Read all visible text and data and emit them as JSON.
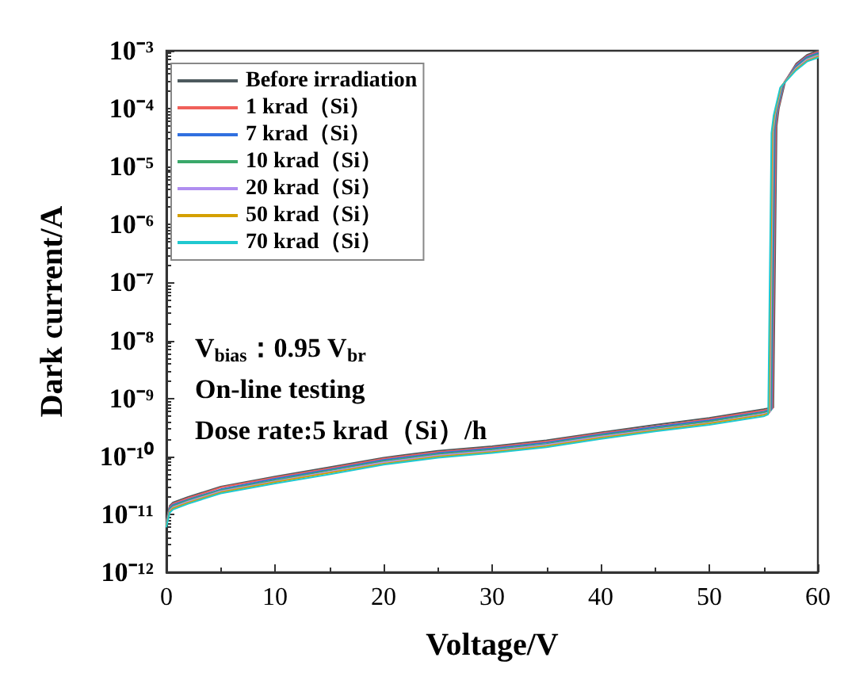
{
  "chart_data": {
    "type": "line",
    "xlabel": "Voltage/V",
    "ylabel": "Dark current/A",
    "log": "y",
    "grid": false,
    "legend": "top left",
    "marker": "none",
    "line_style": "solid",
    "xlim": [
      0,
      60
    ],
    "xticks": [
      0,
      10,
      20,
      30,
      40,
      50,
      60
    ],
    "ylim": [
      1e-12,
      0.001
    ],
    "yticks": [
      {
        "value": 1e-12,
        "label": "10⁻¹²"
      },
      {
        "value": 1e-11,
        "label": "10⁻¹¹"
      },
      {
        "value": 1e-10,
        "label": "10⁻¹⁰"
      },
      {
        "value": 1e-09,
        "label": "10⁻⁹"
      },
      {
        "value": 1e-08,
        "label": "10⁻⁸"
      },
      {
        "value": 1e-07,
        "label": "10⁻⁷"
      },
      {
        "value": 1e-06,
        "label": "10⁻⁶"
      },
      {
        "value": 1e-05,
        "label": "10⁻⁵"
      },
      {
        "value": 0.0001,
        "label": "10⁻⁴"
      },
      {
        "value": 0.001,
        "label": "10⁻³"
      }
    ],
    "series": [
      {
        "name": "Before irradiation",
        "color": "#4d5a5e",
        "x": [
          0,
          0.3,
          0.6,
          2,
          5,
          10,
          15,
          20,
          25,
          30,
          35,
          40,
          45,
          50,
          55,
          55.9,
          56.2,
          56.4,
          57,
          58,
          59,
          60
        ],
        "values": [
          8e-12,
          1.4e-11,
          1.6e-11,
          2e-11,
          3e-11,
          4.5e-11,
          6.5e-11,
          9.5e-11,
          1.25e-10,
          1.5e-10,
          1.9e-10,
          2.6e-10,
          3.5e-10,
          4.6e-10,
          6.5e-10,
          7e-10,
          5e-05,
          0.0001,
          0.0003,
          0.0006,
          0.00085,
          0.001
        ]
      },
      {
        "name": "1 krad（Si）",
        "color": "#f0605a",
        "x": [
          0,
          0.3,
          0.6,
          2,
          5,
          10,
          15,
          20,
          25,
          30,
          35,
          40,
          45,
          50,
          55,
          55.82,
          56.12,
          56.32,
          56.92,
          58,
          59,
          60
        ],
        "values": [
          7.6e-12,
          1.34e-11,
          1.53e-11,
          1.9e-11,
          2.9e-11,
          4.3e-11,
          6.2e-11,
          9.1e-11,
          1.19e-10,
          1.43e-10,
          1.81e-10,
          2.5e-10,
          3.3e-10,
          4.4e-10,
          6.2e-10,
          6.7e-10,
          4.8e-05,
          9.5e-05,
          0.00029,
          0.00057,
          0.00081,
          0.00095
        ]
      },
      {
        "name": "7 krad（Si）",
        "color": "#3070e0",
        "x": [
          0,
          0.3,
          0.6,
          2,
          5,
          10,
          15,
          20,
          25,
          30,
          35,
          40,
          45,
          50,
          55,
          55.74,
          56.04,
          56.24,
          56.84,
          58,
          59,
          60
        ],
        "values": [
          7.3e-12,
          1.28e-11,
          1.46e-11,
          1.8e-11,
          2.7e-11,
          4.1e-11,
          5.9e-11,
          8.7e-11,
          1.14e-10,
          1.37e-10,
          1.73e-10,
          2.4e-10,
          3.2e-10,
          4.2e-10,
          5.9e-10,
          6.4e-10,
          4.6e-05,
          9.1e-05,
          0.00027,
          0.00055,
          0.00078,
          0.00091
        ]
      },
      {
        "name": "10 krad（Si）",
        "color": "#3aa86a",
        "x": [
          0,
          0.3,
          0.6,
          2,
          5,
          10,
          15,
          20,
          25,
          30,
          35,
          40,
          45,
          50,
          55,
          55.66,
          55.96,
          56.16,
          56.76,
          58,
          59,
          60
        ],
        "values": [
          7e-12,
          1.22e-11,
          1.39e-11,
          1.74e-11,
          2.6e-11,
          3.9e-11,
          5.7e-11,
          8.3e-11,
          1.09e-10,
          1.31e-10,
          1.65e-10,
          2.3e-10,
          3.05e-10,
          4e-10,
          5.7e-10,
          6.1e-10,
          4.4e-05,
          8.7e-05,
          0.00026,
          0.00052,
          0.00074,
          0.00087
        ]
      },
      {
        "name": "20 krad（Si）",
        "color": "#b08ef0",
        "x": [
          0,
          0.3,
          0.6,
          2,
          5,
          10,
          15,
          20,
          25,
          30,
          35,
          40,
          45,
          50,
          55,
          55.58,
          55.88,
          56.08,
          56.68,
          58,
          59,
          60
        ],
        "values": [
          6.7e-12,
          1.16e-11,
          1.33e-11,
          1.66e-11,
          2.5e-11,
          3.7e-11,
          5.4e-11,
          7.9e-11,
          1.04e-10,
          1.25e-10,
          1.58e-10,
          2.2e-10,
          2.9e-10,
          3.8e-10,
          5.4e-10,
          5.8e-10,
          4.2e-05,
          8.3e-05,
          0.00025,
          0.0005,
          0.00071,
          0.00083
        ]
      },
      {
        "name": "50 krad（Si）",
        "color": "#d4a000",
        "x": [
          0,
          0.3,
          0.6,
          2,
          5,
          10,
          15,
          20,
          25,
          30,
          35,
          40,
          45,
          50,
          55,
          55.5,
          55.8,
          56,
          56.6,
          58,
          59,
          60
        ],
        "values": [
          6.4e-12,
          1.11e-11,
          1.27e-11,
          1.59e-11,
          2.4e-11,
          3.6e-11,
          5.2e-11,
          7.5e-11,
          9.9e-11,
          1.19e-10,
          1.51e-10,
          2.1e-10,
          2.8e-10,
          3.7e-10,
          5.2e-10,
          5.6e-10,
          4e-05,
          7.9e-05,
          0.00024,
          0.00048,
          0.00067,
          0.00079
        ]
      },
      {
        "name": "70 krad（Si）",
        "color": "#20c8d0",
        "x": [
          0,
          0.3,
          0.6,
          2,
          5,
          10,
          15,
          20,
          25,
          30,
          35,
          40,
          45,
          50,
          55,
          55.42,
          55.72,
          55.92,
          56.52,
          58,
          59,
          60
        ],
        "values": [
          6.1e-12,
          1.06e-11,
          1.21e-11,
          1.52e-11,
          2.3e-11,
          3.4e-11,
          4.9e-11,
          7.2e-11,
          9.5e-11,
          1.14e-10,
          1.44e-10,
          2e-10,
          2.7e-10,
          3.5e-10,
          4.9e-10,
          5.3e-10,
          3.8e-05,
          7.6e-05,
          0.00023,
          0.00046,
          0.00065,
          0.00076
        ]
      }
    ],
    "annotations": [
      "V$_{bias}$：0.95 V$_{br}$",
      "On-line testing",
      "Dose rate:5 krad（Si）/h"
    ]
  }
}
